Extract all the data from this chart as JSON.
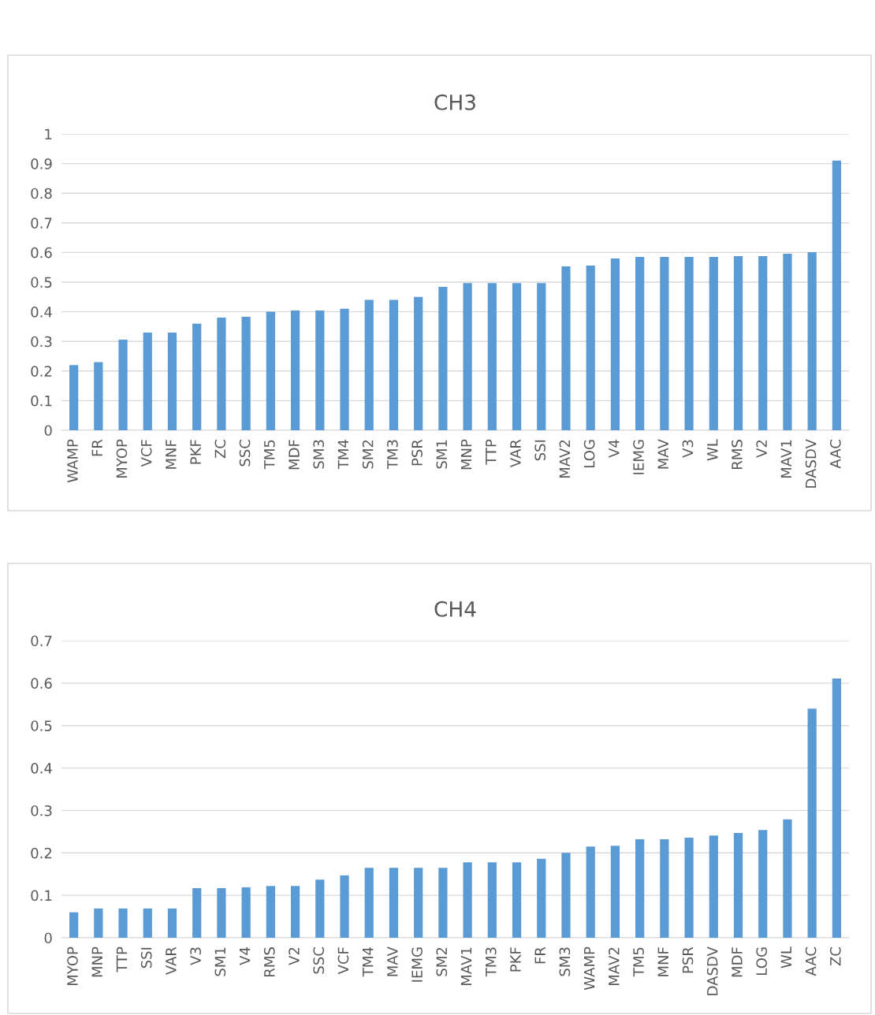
{
  "chart_data": [
    {
      "type": "bar",
      "title": "CH3",
      "color": "#5b9bd5",
      "grid": "y",
      "ylim": [
        0,
        1
      ],
      "yticks": [
        0,
        0.1,
        0.2,
        0.3,
        0.4,
        0.5,
        0.6,
        0.7,
        0.8,
        0.9,
        1
      ],
      "categories": [
        "WAMP",
        "FR",
        "MYOP",
        "VCF",
        "MNF",
        "PKF",
        "ZC",
        "SSC",
        "TM5",
        "MDF",
        "SM3",
        "TM4",
        "SM2",
        "TM3",
        "PSR",
        "SM1",
        "MNP",
        "TTP",
        "VAR",
        "SSI",
        "MAV2",
        "LOG",
        "V4",
        "IEMG",
        "MAV",
        "V3",
        "WL",
        "RMS",
        "V2",
        "MAV1",
        "DASDV",
        "AAC"
      ],
      "values": [
        0.22,
        0.23,
        0.306,
        0.33,
        0.33,
        0.36,
        0.38,
        0.383,
        0.4,
        0.404,
        0.404,
        0.41,
        0.44,
        0.44,
        0.45,
        0.484,
        0.497,
        0.497,
        0.497,
        0.497,
        0.553,
        0.556,
        0.58,
        0.585,
        0.585,
        0.585,
        0.585,
        0.588,
        0.588,
        0.596,
        0.601,
        0.91
      ]
    },
    {
      "type": "bar",
      "title": "CH4",
      "color": "#5b9bd5",
      "grid": "y",
      "ylim": [
        0,
        0.7
      ],
      "yticks": [
        0,
        0.1,
        0.2,
        0.3,
        0.4,
        0.5,
        0.6,
        0.7
      ],
      "categories": [
        "MYOP",
        "MNP",
        "TTP",
        "SSI",
        "VAR",
        "V3",
        "SM1",
        "V4",
        "RMS",
        "V2",
        "SSC",
        "VCF",
        "TM4",
        "MAV",
        "IEMG",
        "SM2",
        "MAV1",
        "TM3",
        "PKF",
        "FR",
        "SM3",
        "WAMP",
        "MAV2",
        "TM5",
        "MNF",
        "PSR",
        "DASDV",
        "MDF",
        "LOG",
        "WL",
        "AAC",
        "ZC"
      ],
      "values": [
        0.06,
        0.069,
        0.069,
        0.069,
        0.069,
        0.117,
        0.117,
        0.119,
        0.122,
        0.122,
        0.137,
        0.147,
        0.165,
        0.165,
        0.165,
        0.165,
        0.178,
        0.178,
        0.178,
        0.186,
        0.2,
        0.215,
        0.217,
        0.232,
        0.232,
        0.236,
        0.241,
        0.247,
        0.254,
        0.279,
        0.54,
        0.611
      ]
    }
  ]
}
